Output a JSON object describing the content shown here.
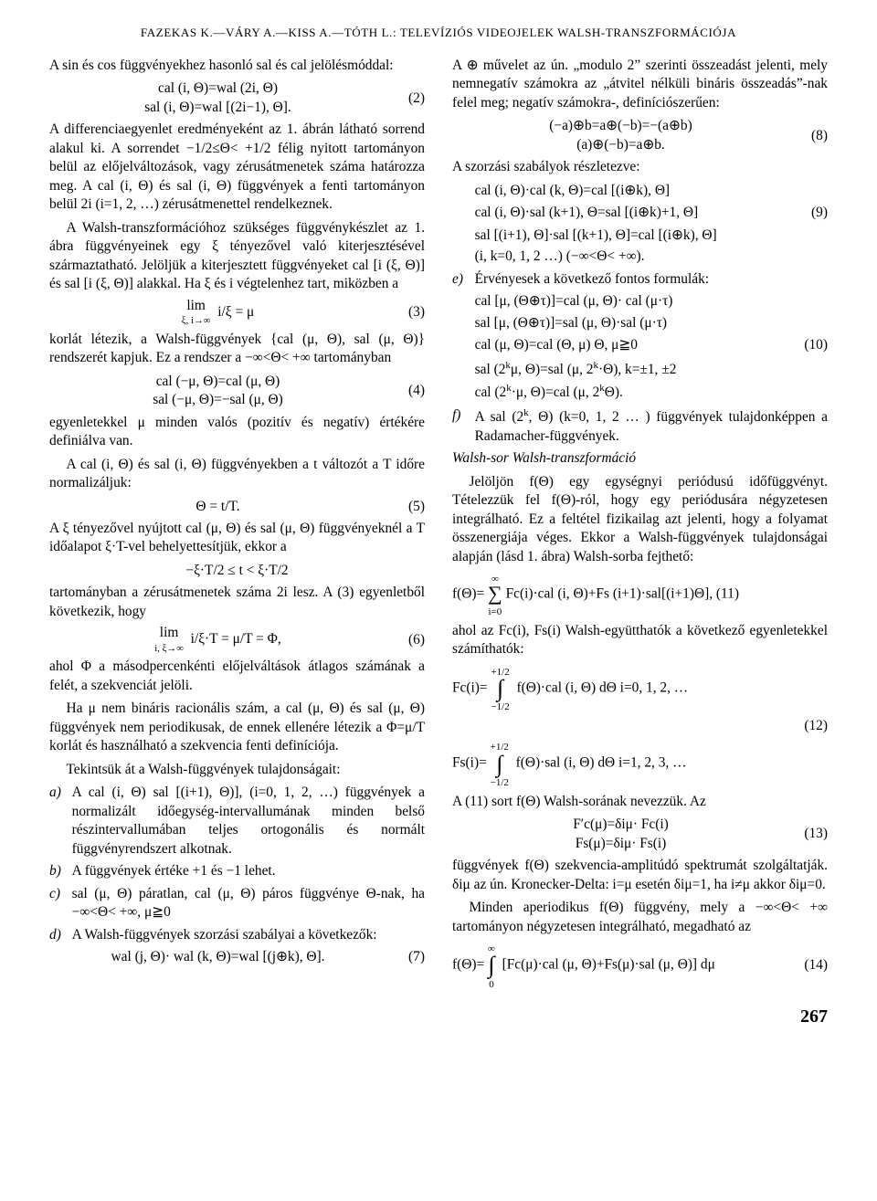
{
  "header": "FAZEKAS K.—VÁRY A.—KISS A.—TÓTH L.: TELEVÍZIÓS VIDEOJELEK WALSH-TRANSZFORMÁCIÓJA",
  "left": {
    "p1": "A sin és cos függvényekhez hasonló sal és cal jelölésmóddal:",
    "eq2a": "cal (i, Θ)=wal (2i, Θ)",
    "eq2b": "sal (i, Θ)=wal [(2i−1), Θ].",
    "eq2n": "(2)",
    "p2": "A differenciaegyenlet eredményeként az 1. ábrán látható sorrend alakul ki. A sorrendet −1/2≤Θ< +1/2 félig nyitott tartományon belül az előjelváltozások, vagy zérusátmenetek száma határozza meg. A cal (i, Θ) és sal (i, Θ) függvények a fenti tartományon belül 2i (i=1, 2, …) zérusátmenettel rendelkeznek.",
    "p3": "A Walsh-transzformációhoz szükséges függvénykészlet az 1. ábra függvényeinek egy ξ tényezővel való kiterjesztésével származtatható. Jelöljük a kiterjesztett függvényeket cal [i (ξ, Θ)] és sal [i (ξ, Θ)] alakkal. Ha ξ és i végtelenhez tart, miközben a",
    "eq3lim_top": "lim",
    "eq3lim_bot": "ξ, i→∞",
    "eq3b": "i/ξ = μ",
    "eq3n": "(3)",
    "p4": "korlát létezik, a Walsh-függvények {cal (μ, Θ), sal (μ, Θ)} rendszerét kapjuk. Ez a rendszer a −∞<Θ< +∞ tartományban",
    "eq4a": "cal (−μ, Θ)=cal (μ, Θ)",
    "eq4b": "sal (−μ, Θ)=−sal (μ, Θ)",
    "eq4n": "(4)",
    "p5": "egyenletekkel μ minden valós (pozitív és negatív) értékére definiálva van.",
    "p6": "A cal (i, Θ) és sal (i, Θ) függvényekben a t változót a T időre normalizáljuk:",
    "eq5": "Θ = t/T.",
    "eq5n": "(5)",
    "p7": "A ξ tényezővel nyújtott cal (μ, Θ) és sal (μ, Θ) függvényeknél a T időalapot ξ·T-vel behelyettesítjük, ekkor a",
    "eq_range": "−ξ·T/2 ≤ t < ξ·T/2",
    "p8": "tartományban a zérusátmenetek száma 2i lesz. A (3) egyenletből következik, hogy",
    "eq6lim_top": "lim",
    "eq6lim_bot": "i, ξ→∞",
    "eq6b": "i/ξ·T = μ/T = Φ,",
    "eq6n": "(6)",
    "p9": "ahol Φ a másodpercenkénti előjelváltások átlagos számának a felét, a szekvenciát jelöli.",
    "p10": "Ha μ nem bináris racionális szám, a cal (μ, Θ) és sal (μ, Θ) függvények nem periodikusak, de ennek ellenére létezik a Φ=μ/T korlát és használható a szekvencia fenti definíciója.",
    "pTek": "Tekintsük át a Walsh-függvények tulajdonságait:",
    "a_mk": "a)",
    "a_txt": "A cal (i, Θ) sal [(i+1), Θ)], (i=0, 1, 2, …) függvények a normalizált időegység-intervallumának minden belső részintervallumában teljes ortogonális és normált függvényrendszert alkotnak.",
    "b_mk": "b)",
    "b_txt": "A függvények értéke +1 és −1 lehet.",
    "c_mk": "c)",
    "c_txt": "sal (μ, Θ) páratlan, cal (μ, Θ) páros függvénye Θ-nak, ha −∞<Θ< +∞, μ≧0",
    "d_mk": "d)",
    "d_txt": "A Walsh-függvények szorzási szabályai a következők:",
    "eq7": "wal (j, Θ)· wal (k, Θ)=wal [(j⊕k), Θ].",
    "eq7n": "(7)"
  },
  "right": {
    "p1": "A ⊕ művelet az ún. „modulo 2” szerinti összeadást jelenti, mely nemnegatív számokra az „átvitel nélküli bináris összeadás”-nak felel meg; negatív számokra-, definíciószerűen:",
    "eq8a": "(−a)⊕b=a⊕(−b)=−(a⊕b)",
    "eq8b": "(a)⊕(−b)=a⊕b.",
    "eq8n": "(8)",
    "p2": "A szorzási szabályok részletezve:",
    "eq9a": "cal (i, Θ)·cal (k,  Θ)=cal [(i⊕k), Θ]",
    "eq9b": "cal (i, Θ)·sal (k+1), Θ=sal [(i⊕k)+1, Θ]",
    "eq9n": "(9)",
    "eq9c": "sal [(i+1), Θ]·sal [(k+1), Θ]=cal [(i⊕k), Θ]",
    "eq9d": "(i, k=0, 1, 2 …) (−∞<Θ< +∞).",
    "e_mk": "e)",
    "e_txt": "Érvényesek a következő fontos formulák:",
    "eq10a": "cal [μ, (Θ⊕τ)]=cal (μ, Θ)· cal (μ·τ)",
    "eq10b": "sal [μ, (Θ⊕τ)]=sal (μ, Θ)·sal (μ·τ)",
    "eq10c": "cal (μ, Θ)=cal (Θ, μ)      Θ, μ≧0",
    "eq10n": "(10)",
    "eq10d_a": "sal (2",
    "eq10d_b": "μ, Θ)=sal (μ, 2",
    "eq10d_c": "·Θ), k=±1, ±2",
    "eq10e_a": "cal (2",
    "eq10e_b": "·μ, Θ)=cal (μ, 2",
    "eq10e_c": "Θ).",
    "f_mk": "f)",
    "f_txt_a": "A sal (2",
    "f_txt_b": ", Θ) (k=0, 1, 2 … ) függvények tulajdonképpen a Radamacher-függvények.",
    "sec": "Walsh-sor Walsh-transzformáció",
    "p3": "Jelöljön f(Θ) egy egységnyi periódusú időfüggvényt. Tételezzük fel f(Θ)-ról, hogy egy periódusára négyzetesen integrálható. Ez a feltétel fizikailag azt jelenti, hogy a folyamat összenergiája véges. Ekkor a Walsh-függvények tulajdonságai alapján (lásd 1. ábra) Walsh-sorba fejthető:",
    "eq11_lhs": "f(Θ)=",
    "eq11_sum_ub": "∞",
    "eq11_sum_lb": "i=0",
    "eq11_rhs": "Fc(i)·cal (i, Θ)+Fs (i+1)·sal[(i+1)Θ], (11)",
    "p4": "ahol az Fc(i), Fs(i) Walsh-együtthatók a következő egyenletekkel számíthatók:",
    "eq12a_lhs": "Fc(i)=",
    "eq12_ub": "+1/2",
    "eq12_lb": "−1/2",
    "eq12a_rhs": "f(Θ)·cal (i, Θ) dΘ    i=0, 1, 2, …",
    "eq12n": "(12)",
    "eq12b_lhs": "Fs(i)=",
    "eq12b_rhs": "f(Θ)·sal (i, Θ) dΘ    i=1, 2, 3, …",
    "p5": "A (11) sort f(Θ) Walsh-sorának nevezzük. Az",
    "eq13a": "F′c(μ)=δiμ· Fc(i)",
    "eq13b": "Fs(μ)=δiμ· Fs(i)",
    "eq13n": "(13)",
    "p6": "függvények f(Θ) szekvencia-amplitúdó spektrumát szolgáltatják. δiμ az ún. Kronecker-Delta: i=μ esetén δiμ=1, ha i≠μ akkor δiμ=0.",
    "p7": "Minden aperiodikus f(Θ) függvény, mely a −∞<Θ< +∞ tartományon négyzetesen integrálható, megadható az",
    "eq14_lhs": "f(Θ)=",
    "eq14_ub": "∞",
    "eq14_lb": "0",
    "eq14_rhs": "[Fc(μ)·cal (μ, Θ)+Fs(μ)·sal (μ, Θ)] dμ",
    "eq14n": "(14)"
  },
  "pagenum": "267"
}
